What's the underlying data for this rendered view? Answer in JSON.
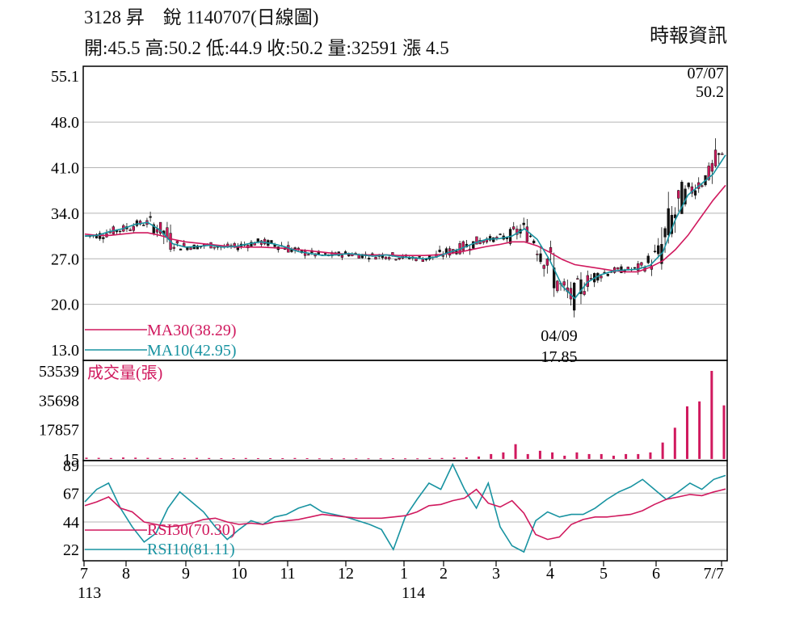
{
  "header": {
    "title": "3128 昇　銳 1140707(日線圖)",
    "ohlc": "開:45.5 高:50.2 低:44.9 收:50.2 量:32591 漲 4.5",
    "source": "時報資訊"
  },
  "chart_data": [
    {
      "type": "line",
      "subtype": "candlestick",
      "y_ticks": [
        "55.1",
        "48.0",
        "41.0",
        "34.0",
        "27.0",
        "20.0",
        "13.0"
      ],
      "ylim": [
        13.0,
        55.1
      ],
      "grid": true,
      "legend_position": "bottom-left",
      "annotations": [
        {
          "label": "07/07",
          "value": "50.2"
        },
        {
          "label": "04/09",
          "value": "17.85"
        }
      ],
      "series": [
        {
          "name": "MA30(38.29)",
          "color": "#d0195e",
          "values": [
            30.8,
            30.6,
            30.6,
            30.8,
            31.0,
            31.0,
            30.6,
            30.0,
            29.6,
            29.4,
            29.2,
            29.0,
            28.8,
            28.8,
            28.8,
            28.7,
            28.6,
            28.4,
            28.2,
            28.0,
            27.8,
            27.7,
            27.6,
            27.6,
            27.6,
            27.5,
            27.5,
            27.5,
            27.6,
            27.8,
            28.1,
            28.5,
            28.9,
            29.2,
            29.6,
            29.6,
            29.0,
            28.0,
            26.9,
            26.1,
            25.8,
            25.5,
            25.2,
            25.0,
            25.0,
            25.7,
            26.7,
            28.4,
            30.6,
            33.3,
            36.0,
            38.3
          ]
        },
        {
          "name": "MA10(42.95)",
          "color": "#1893a1",
          "values": [
            30.5,
            30.6,
            31.2,
            31.6,
            32.3,
            32.6,
            31.4,
            29.3,
            28.8,
            28.9,
            29.1,
            28.8,
            28.9,
            29.3,
            29.6,
            29.3,
            28.8,
            28.1,
            27.8,
            27.5,
            27.6,
            27.8,
            27.6,
            27.4,
            27.6,
            27.3,
            27.2,
            27.0,
            27.3,
            28.0,
            28.6,
            29.4,
            30.0,
            30.1,
            30.5,
            31.6,
            30.0,
            26.8,
            22.8,
            20.9,
            23.4,
            24.5,
            25.1,
            25.3,
            25.4,
            26.0,
            28.0,
            33.0,
            36.8,
            38.4,
            40.0,
            42.95
          ]
        }
      ]
    },
    {
      "type": "bar",
      "title": "成交量(張)",
      "y_ticks": [
        "53539",
        "35698",
        "17857",
        "15"
      ],
      "ylim": [
        15,
        53539
      ],
      "values": [
        800,
        700,
        600,
        900,
        800,
        700,
        600,
        500,
        600,
        700,
        600,
        500,
        500,
        600,
        500,
        500,
        500,
        600,
        500,
        400,
        400,
        400,
        400,
        400,
        400,
        500,
        400,
        400,
        600,
        600,
        800,
        1000,
        1500,
        3000,
        4000,
        9000,
        3000,
        5000,
        4000,
        2000,
        4000,
        3000,
        3000,
        2000,
        3000,
        3000,
        4000,
        10000,
        19000,
        32000,
        35000,
        53539,
        32591
      ]
    },
    {
      "type": "line",
      "y_ticks": [
        "89",
        "67",
        "44",
        "22"
      ],
      "ylim": [
        13,
        93
      ],
      "grid": true,
      "legend_position": "bottom-left",
      "series": [
        {
          "name": "RSI30(70.30)",
          "color": "#d0195e",
          "values": [
            57,
            60,
            64,
            55,
            52,
            44,
            42,
            40,
            41,
            43,
            46,
            47,
            44,
            42,
            43,
            42,
            44,
            45,
            46,
            48,
            50,
            49,
            48,
            47,
            47,
            47,
            48,
            49,
            52,
            57,
            58,
            61,
            63,
            70,
            59,
            56,
            61,
            51,
            34,
            30,
            32,
            42,
            46,
            48,
            48,
            49,
            50,
            53,
            58,
            62,
            64,
            66,
            65,
            68,
            70.3
          ]
        },
        {
          "name": "RSI10(81.11)",
          "color": "#1893a1",
          "values": [
            60,
            70,
            75,
            55,
            40,
            28,
            35,
            55,
            68,
            60,
            52,
            40,
            30,
            38,
            45,
            42,
            48,
            50,
            55,
            58,
            52,
            50,
            48,
            45,
            42,
            38,
            22,
            48,
            62,
            75,
            70,
            90,
            70,
            55,
            75,
            40,
            25,
            20,
            45,
            52,
            48,
            50,
            50,
            55,
            62,
            68,
            72,
            78,
            70,
            62,
            68,
            75,
            70,
            78,
            81.11
          ]
        }
      ]
    }
  ],
  "x_axis": {
    "ticks": [
      "7",
      "8",
      "9",
      "10",
      "11",
      "12",
      "1",
      "2",
      "3",
      "4",
      "5",
      "6",
      "7/7"
    ],
    "year_labels": [
      "113",
      "114"
    ]
  }
}
